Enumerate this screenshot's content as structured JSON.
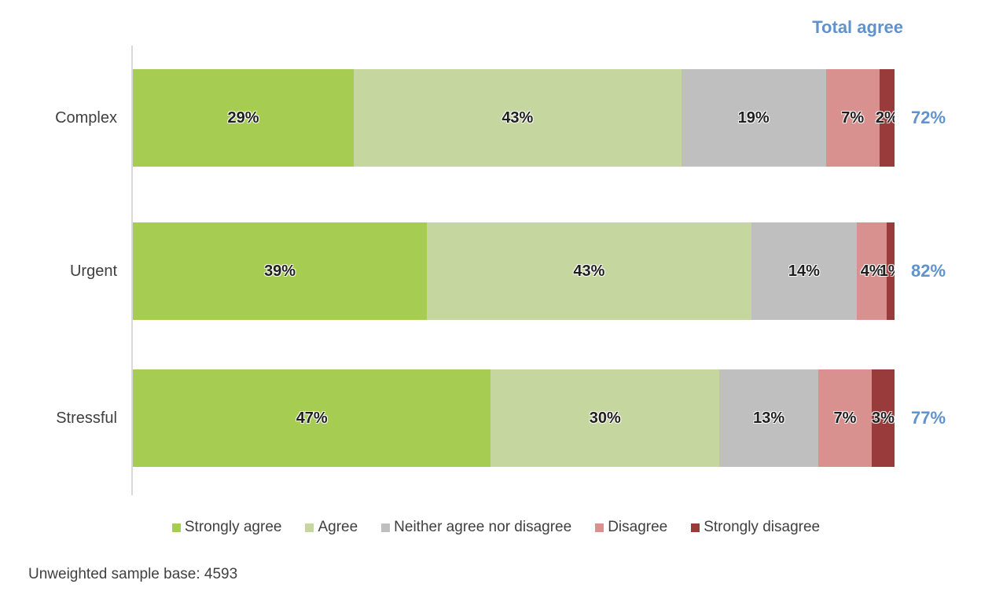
{
  "chart_data": {
    "type": "bar",
    "variant": "horizontal-100pct-stacked",
    "categories": [
      "Complex",
      "Urgent",
      "Stressful"
    ],
    "series": [
      {
        "name": "Strongly agree",
        "color": "#A6CC52",
        "values": [
          29,
          39,
          47
        ]
      },
      {
        "name": "Agree",
        "color": "#C5D79E",
        "values": [
          43,
          43,
          30
        ]
      },
      {
        "name": "Neither agree nor disagree",
        "color": "#BFBFBF",
        "values": [
          19,
          14,
          13
        ]
      },
      {
        "name": "Disagree",
        "color": "#D9918F",
        "values": [
          7,
          4,
          7
        ]
      },
      {
        "name": "Strongly disagree",
        "color": "#9A3B3B",
        "values": [
          2,
          1,
          3
        ]
      }
    ],
    "totals": {
      "label": "Total agree",
      "values": [
        72,
        82,
        77
      ]
    },
    "unit": "%",
    "xlim": [
      0,
      100
    ],
    "legend_position": "bottom",
    "data_label_format": "inside-center-bold"
  },
  "footer": {
    "note": "Unweighted sample base: 4593"
  },
  "colors": {
    "total_agree_text": "#6292CB",
    "axis_line": "#D9D9D9",
    "category_label_text": "#3F3F3F",
    "segment_label_text": "#1F1F1F",
    "legend_text": "#404040"
  }
}
